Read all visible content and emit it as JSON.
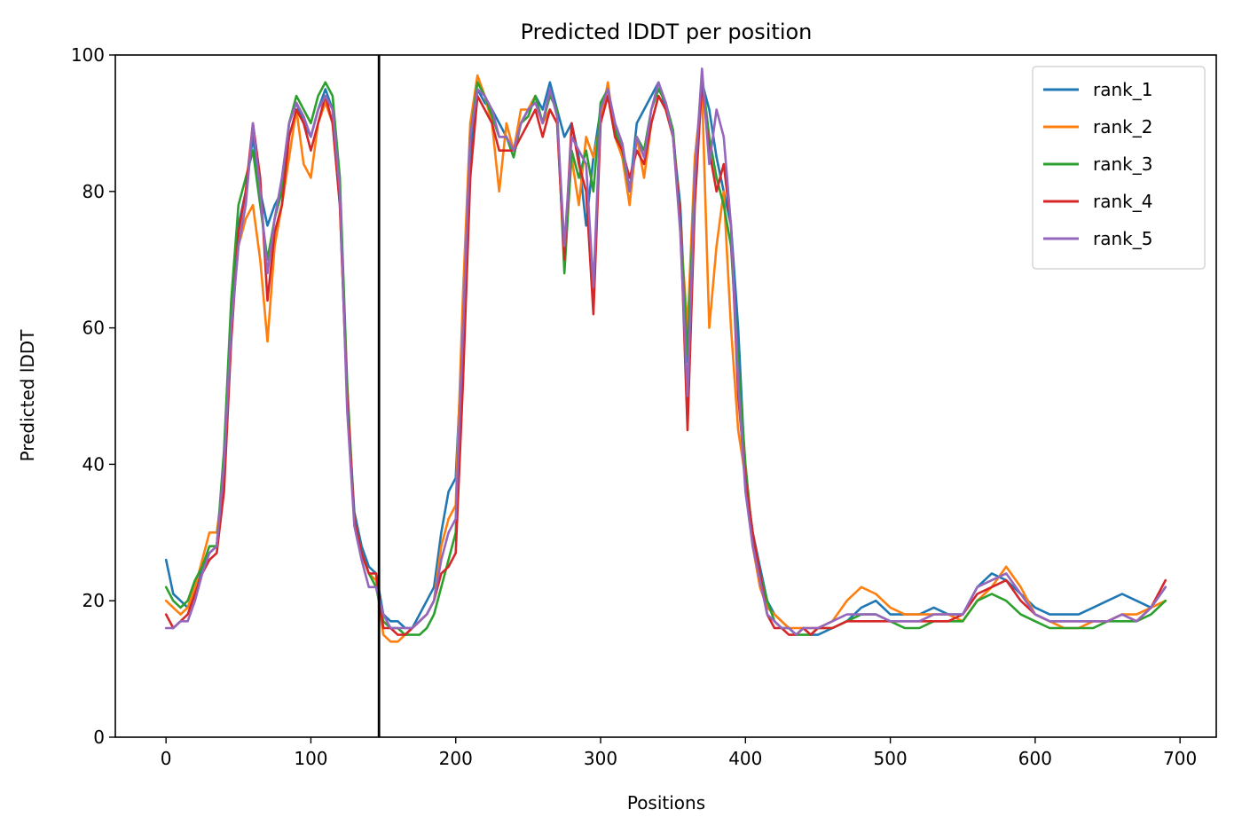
{
  "chart_data": {
    "type": "line",
    "title": "Predicted lDDT per position",
    "xlabel": "Positions",
    "ylabel": "Predicted lDDT",
    "xlim": [
      -35,
      725
    ],
    "ylim": [
      0,
      100
    ],
    "xticks": [
      0,
      100,
      200,
      300,
      400,
      500,
      600,
      700
    ],
    "yticks": [
      0,
      20,
      40,
      60,
      80,
      100
    ],
    "grid": false,
    "legend_position": "top-right",
    "vline_x": 147,
    "series": [
      {
        "name": "rank_1",
        "color": "#1f77b4",
        "x": [
          0,
          5,
          10,
          15,
          20,
          25,
          30,
          35,
          40,
          45,
          50,
          55,
          60,
          65,
          70,
          75,
          80,
          85,
          90,
          95,
          100,
          105,
          110,
          115,
          120,
          125,
          130,
          135,
          140,
          145,
          150,
          155,
          160,
          165,
          170,
          175,
          180,
          185,
          190,
          195,
          200,
          205,
          210,
          215,
          220,
          225,
          230,
          235,
          240,
          245,
          250,
          255,
          260,
          265,
          270,
          275,
          280,
          285,
          290,
          295,
          300,
          305,
          310,
          315,
          320,
          325,
          330,
          335,
          340,
          345,
          350,
          355,
          360,
          365,
          370,
          375,
          380,
          385,
          390,
          395,
          400,
          405,
          410,
          415,
          420,
          425,
          430,
          435,
          440,
          445,
          450,
          460,
          470,
          480,
          490,
          500,
          510,
          520,
          530,
          540,
          550,
          560,
          570,
          580,
          590,
          600,
          610,
          620,
          630,
          640,
          650,
          660,
          670,
          680,
          690
        ],
        "y": [
          26,
          21,
          20,
          19,
          22,
          25,
          27,
          28,
          40,
          60,
          75,
          80,
          88,
          80,
          75,
          78,
          80,
          90,
          93,
          90,
          88,
          92,
          95,
          92,
          80,
          50,
          33,
          28,
          25,
          24,
          18,
          17,
          17,
          16,
          16,
          18,
          20,
          22,
          30,
          36,
          38,
          60,
          85,
          95,
          93,
          92,
          90,
          88,
          86,
          90,
          92,
          94,
          92,
          96,
          92,
          88,
          90,
          85,
          75,
          85,
          92,
          95,
          90,
          87,
          80,
          90,
          92,
          94,
          96,
          92,
          88,
          78,
          55,
          80,
          96,
          92,
          85,
          80,
          75,
          60,
          38,
          30,
          25,
          20,
          18,
          17,
          16,
          15,
          16,
          15,
          15,
          16,
          17,
          19,
          20,
          18,
          18,
          18,
          19,
          18,
          18,
          22,
          24,
          23,
          21,
          19,
          18,
          18,
          18,
          19,
          20,
          21,
          20,
          19,
          22
        ]
      },
      {
        "name": "rank_2",
        "color": "#ff7f0e",
        "x": [
          0,
          5,
          10,
          15,
          20,
          25,
          30,
          35,
          40,
          45,
          50,
          55,
          60,
          65,
          70,
          75,
          80,
          85,
          90,
          95,
          100,
          105,
          110,
          115,
          120,
          125,
          130,
          135,
          140,
          145,
          150,
          155,
          160,
          165,
          170,
          175,
          180,
          185,
          190,
          195,
          200,
          205,
          210,
          215,
          220,
          225,
          230,
          235,
          240,
          245,
          250,
          255,
          260,
          265,
          270,
          275,
          280,
          285,
          290,
          295,
          300,
          305,
          310,
          315,
          320,
          325,
          330,
          335,
          340,
          345,
          350,
          355,
          360,
          365,
          370,
          375,
          380,
          385,
          390,
          395,
          400,
          405,
          410,
          415,
          420,
          425,
          430,
          435,
          440,
          445,
          450,
          460,
          470,
          480,
          490,
          500,
          510,
          520,
          530,
          540,
          550,
          560,
          570,
          580,
          590,
          600,
          610,
          620,
          630,
          640,
          650,
          660,
          670,
          680,
          690
        ],
        "y": [
          20,
          19,
          18,
          19,
          22,
          26,
          30,
          30,
          38,
          60,
          72,
          76,
          78,
          70,
          58,
          72,
          78,
          85,
          92,
          84,
          82,
          90,
          93,
          90,
          78,
          50,
          32,
          27,
          24,
          23,
          15,
          14,
          14,
          15,
          16,
          17,
          18,
          20,
          28,
          32,
          34,
          65,
          90,
          97,
          94,
          90,
          80,
          90,
          86,
          92,
          92,
          94,
          90,
          92,
          90,
          70,
          85,
          78,
          88,
          85,
          90,
          96,
          88,
          85,
          78,
          88,
          82,
          90,
          94,
          92,
          88,
          75,
          60,
          85,
          95,
          60,
          72,
          80,
          60,
          45,
          38,
          28,
          22,
          19,
          18,
          17,
          16,
          16,
          16,
          16,
          16,
          17,
          20,
          22,
          21,
          19,
          18,
          18,
          18,
          18,
          17,
          20,
          22,
          25,
          22,
          18,
          17,
          16,
          16,
          17,
          17,
          18,
          18,
          19,
          20
        ]
      },
      {
        "name": "rank_3",
        "color": "#2ca02c",
        "x": [
          0,
          5,
          10,
          15,
          20,
          25,
          30,
          35,
          40,
          45,
          50,
          55,
          60,
          65,
          70,
          75,
          80,
          85,
          90,
          95,
          100,
          105,
          110,
          115,
          120,
          125,
          130,
          135,
          140,
          145,
          150,
          155,
          160,
          165,
          170,
          175,
          180,
          185,
          190,
          195,
          200,
          205,
          210,
          215,
          220,
          225,
          230,
          235,
          240,
          245,
          250,
          255,
          260,
          265,
          270,
          275,
          280,
          285,
          290,
          295,
          300,
          305,
          310,
          315,
          320,
          325,
          330,
          335,
          340,
          345,
          350,
          355,
          360,
          365,
          370,
          375,
          380,
          385,
          390,
          395,
          400,
          405,
          410,
          415,
          420,
          425,
          430,
          435,
          440,
          445,
          450,
          460,
          470,
          480,
          490,
          500,
          510,
          520,
          530,
          540,
          550,
          560,
          570,
          580,
          590,
          600,
          610,
          620,
          630,
          640,
          650,
          660,
          670,
          680,
          690
        ],
        "y": [
          22,
          20,
          19,
          20,
          23,
          25,
          28,
          28,
          42,
          64,
          78,
          82,
          86,
          78,
          70,
          76,
          80,
          90,
          94,
          92,
          90,
          94,
          96,
          94,
          82,
          52,
          32,
          27,
          24,
          22,
          17,
          16,
          16,
          15,
          15,
          15,
          16,
          18,
          22,
          26,
          30,
          55,
          88,
          96,
          94,
          91,
          88,
          88,
          85,
          90,
          91,
          94,
          90,
          94,
          92,
          68,
          86,
          82,
          86,
          80,
          93,
          95,
          89,
          86,
          80,
          88,
          86,
          92,
          95,
          93,
          89,
          76,
          56,
          82,
          97,
          88,
          82,
          78,
          72,
          55,
          40,
          29,
          24,
          20,
          17,
          16,
          16,
          15,
          15,
          15,
          16,
          16,
          17,
          18,
          18,
          17,
          16,
          16,
          17,
          17,
          17,
          20,
          21,
          20,
          18,
          17,
          16,
          16,
          16,
          16,
          17,
          17,
          17,
          18,
          20
        ]
      },
      {
        "name": "rank_4",
        "color": "#d62728",
        "x": [
          0,
          5,
          10,
          15,
          20,
          25,
          30,
          35,
          40,
          45,
          50,
          55,
          60,
          65,
          70,
          75,
          80,
          85,
          90,
          95,
          100,
          105,
          110,
          115,
          120,
          125,
          130,
          135,
          140,
          145,
          150,
          155,
          160,
          165,
          170,
          175,
          180,
          185,
          190,
          195,
          200,
          205,
          210,
          215,
          220,
          225,
          230,
          235,
          240,
          245,
          250,
          255,
          260,
          265,
          270,
          275,
          280,
          285,
          290,
          295,
          300,
          305,
          310,
          315,
          320,
          325,
          330,
          335,
          340,
          345,
          350,
          355,
          360,
          365,
          370,
          375,
          380,
          385,
          390,
          395,
          400,
          405,
          410,
          415,
          420,
          425,
          430,
          435,
          440,
          445,
          450,
          460,
          470,
          480,
          490,
          500,
          510,
          520,
          530,
          540,
          550,
          560,
          570,
          580,
          590,
          600,
          610,
          620,
          630,
          640,
          650,
          660,
          670,
          680,
          690
        ],
        "y": [
          18,
          16,
          17,
          18,
          21,
          24,
          26,
          27,
          36,
          58,
          74,
          80,
          90,
          82,
          64,
          74,
          78,
          88,
          92,
          90,
          86,
          90,
          94,
          90,
          78,
          50,
          32,
          27,
          24,
          24,
          16,
          16,
          15,
          15,
          16,
          17,
          18,
          20,
          24,
          25,
          27,
          52,
          82,
          94,
          92,
          90,
          86,
          86,
          86,
          88,
          90,
          92,
          88,
          92,
          90,
          70,
          90,
          84,
          80,
          62,
          90,
          94,
          88,
          86,
          82,
          86,
          84,
          90,
          94,
          92,
          88,
          76,
          45,
          78,
          96,
          86,
          80,
          84,
          75,
          50,
          38,
          30,
          24,
          18,
          16,
          16,
          15,
          15,
          16,
          15,
          16,
          16,
          17,
          17,
          17,
          17,
          17,
          17,
          17,
          17,
          18,
          21,
          22,
          23,
          20,
          18,
          17,
          17,
          17,
          17,
          17,
          18,
          17,
          19,
          23
        ]
      },
      {
        "name": "rank_5",
        "color": "#9467bd",
        "x": [
          0,
          5,
          10,
          15,
          20,
          25,
          30,
          35,
          40,
          45,
          50,
          55,
          60,
          65,
          70,
          75,
          80,
          85,
          90,
          95,
          100,
          105,
          110,
          115,
          120,
          125,
          130,
          135,
          140,
          145,
          150,
          155,
          160,
          165,
          170,
          175,
          180,
          185,
          190,
          195,
          200,
          205,
          210,
          215,
          220,
          225,
          230,
          235,
          240,
          245,
          250,
          255,
          260,
          265,
          270,
          275,
          280,
          285,
          290,
          295,
          300,
          305,
          310,
          315,
          320,
          325,
          330,
          335,
          340,
          345,
          350,
          355,
          360,
          365,
          370,
          375,
          380,
          385,
          390,
          395,
          400,
          405,
          410,
          415,
          420,
          425,
          430,
          435,
          440,
          445,
          450,
          460,
          470,
          480,
          490,
          500,
          510,
          520,
          530,
          540,
          550,
          560,
          570,
          580,
          590,
          600,
          610,
          620,
          630,
          640,
          650,
          660,
          670,
          680,
          690
        ],
        "y": [
          16,
          16,
          17,
          17,
          20,
          24,
          27,
          28,
          40,
          60,
          72,
          78,
          90,
          80,
          68,
          76,
          82,
          90,
          93,
          91,
          88,
          92,
          94,
          92,
          80,
          48,
          31,
          26,
          22,
          22,
          18,
          16,
          16,
          16,
          16,
          17,
          18,
          20,
          26,
          30,
          32,
          60,
          88,
          95,
          94,
          92,
          88,
          88,
          86,
          90,
          92,
          93,
          90,
          95,
          91,
          72,
          88,
          86,
          84,
          66,
          92,
          95,
          90,
          87,
          80,
          88,
          85,
          92,
          96,
          93,
          88,
          74,
          50,
          82,
          98,
          84,
          92,
          88,
          75,
          52,
          36,
          28,
          23,
          18,
          17,
          16,
          16,
          15,
          16,
          16,
          16,
          17,
          18,
          18,
          18,
          17,
          17,
          17,
          18,
          18,
          18,
          22,
          23,
          24,
          21,
          18,
          17,
          17,
          17,
          17,
          17,
          18,
          17,
          19,
          22
        ]
      }
    ]
  }
}
